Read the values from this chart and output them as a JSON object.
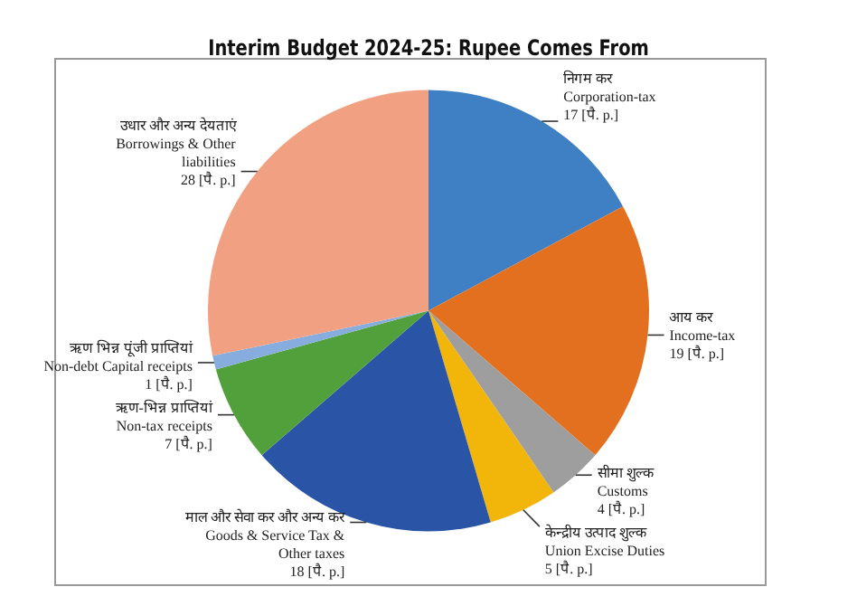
{
  "chart_data": {
    "type": "pie",
    "title": "Interim Budget 2024-25: Rupee Comes From",
    "categories": [
      "निगम कर\nCorporation-tax",
      "आय कर\nIncome-tax",
      "सीमा शुल्क\nCustoms",
      "केन्द्रीय उत्पाद शुल्क\nUnion Excise Duties",
      "माल और सेवा कर और अन्य कर\nGoods & Service Tax & Other taxes",
      "ऋण-भिन्न प्राप्तियां\nNon-tax receipts",
      "ऋण भिन्न पूंजी प्राप्तियां\nNon-debt Capital receipts",
      "उधार और अन्य देयताएं\nBorrowings & Other liabilities"
    ],
    "values": [
      17,
      19,
      4,
      5,
      18,
      7,
      1,
      28
    ],
    "colors": [
      "#3f7fc4",
      "#e2701f",
      "#9e9e9e",
      "#f2b50a",
      "#2a55a6",
      "#52a03c",
      "#86addd",
      "#f1a182"
    ],
    "value_labels": [
      "17 [पै. p.]",
      "19 [पै. p.]",
      "4 [पै. p.]",
      "5 [पै. p.]",
      "18 [पै. p.]",
      "7 [पै. p.]",
      "1 [पै. p.]",
      "28 [पै. p.]"
    ],
    "legend": false
  }
}
